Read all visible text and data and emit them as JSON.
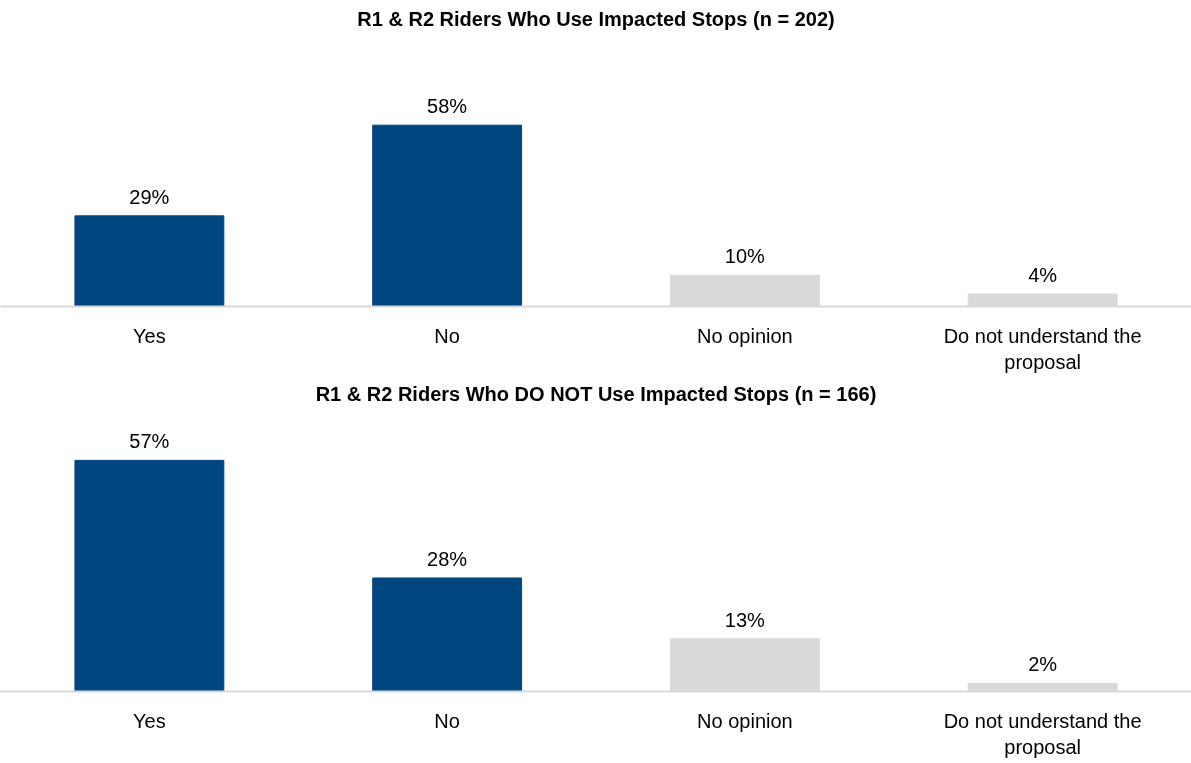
{
  "chart_data": [
    {
      "type": "bar",
      "title": "R1 & R2 Riders Who Use Impacted Stops (n = 202)",
      "categories": [
        "Yes",
        "No",
        "No opinion",
        "Do not understand the proposal"
      ],
      "values": [
        29,
        58,
        10,
        4
      ],
      "colors": [
        "#00467f",
        "#00467f",
        "#d9d9d9",
        "#d9d9d9"
      ],
      "value_labels": [
        "29%",
        "58%",
        "10%",
        "4%"
      ],
      "grid": false
    },
    {
      "type": "bar",
      "title": "R1 & R2 Riders Who DO NOT Use Impacted Stops (n = 166)",
      "categories": [
        "Yes",
        "No",
        "No opinion",
        "Do not understand the proposal"
      ],
      "values": [
        57,
        28,
        13,
        2
      ],
      "colors": [
        "#00467f",
        "#00467f",
        "#d9d9d9",
        "#d9d9d9"
      ],
      "value_labels": [
        "57%",
        "28%",
        "13%",
        "2%"
      ],
      "grid": false
    }
  ]
}
